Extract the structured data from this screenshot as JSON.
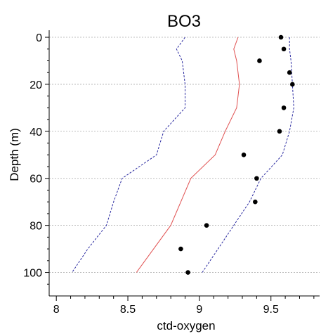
{
  "chart_data": {
    "type": "line",
    "title": "BO3",
    "xlabel": "ctd-oxygen",
    "ylabel": "Depth (m)",
    "xlim": [
      7.95,
      9.84
    ],
    "ylim": [
      110,
      -3
    ],
    "y_inverted": true,
    "x_ticks": [
      8,
      8.5,
      9,
      9.5
    ],
    "x_tick_labels": [
      "8",
      "8.5",
      "9",
      "9.5"
    ],
    "x_minor_step": 0.1,
    "y_ticks": [
      0,
      20,
      40,
      60,
      80,
      100
    ],
    "y_tick_labels": [
      "0",
      "20",
      "40",
      "60",
      "80",
      "100"
    ],
    "grid": "horizontal",
    "legend": "none",
    "colors": {
      "median_line": "#e05050",
      "bounds": "#2a2aa0",
      "points": "#000000",
      "grid": "#aaaaaa"
    },
    "series": [
      {
        "style": "dashed",
        "color": "#2a2aa0",
        "points": [
          [
            8.9,
            0
          ],
          [
            8.84,
            5
          ],
          [
            8.88,
            10
          ],
          [
            8.9,
            20
          ],
          [
            8.9,
            30
          ],
          [
            8.75,
            40
          ],
          [
            8.7,
            50
          ],
          [
            8.46,
            60
          ],
          [
            8.4,
            70
          ],
          [
            8.35,
            80
          ],
          [
            8.22,
            90
          ],
          [
            8.11,
            100
          ]
        ]
      },
      {
        "style": "solid",
        "color": "#e05050",
        "points": [
          [
            9.27,
            0
          ],
          [
            9.24,
            5
          ],
          [
            9.26,
            10
          ],
          [
            9.28,
            20
          ],
          [
            9.26,
            30
          ],
          [
            9.18,
            40
          ],
          [
            9.11,
            50
          ],
          [
            8.94,
            60
          ],
          [
            8.87,
            70
          ],
          [
            8.8,
            80
          ],
          [
            8.68,
            90
          ],
          [
            8.56,
            100
          ]
        ]
      },
      {
        "style": "dashed",
        "color": "#2a2aa0",
        "points": [
          [
            9.63,
            0
          ],
          [
            9.63,
            5
          ],
          [
            9.64,
            10
          ],
          [
            9.65,
            20
          ],
          [
            9.66,
            30
          ],
          [
            9.63,
            40
          ],
          [
            9.58,
            50
          ],
          [
            9.43,
            60
          ],
          [
            9.35,
            70
          ],
          [
            9.24,
            80
          ],
          [
            9.13,
            90
          ],
          [
            9.02,
            100
          ]
        ]
      },
      {
        "style": "points",
        "color": "#000000",
        "points": [
          [
            9.57,
            0
          ],
          [
            9.59,
            5
          ],
          [
            9.42,
            10
          ],
          [
            9.63,
            15
          ],
          [
            9.65,
            20
          ],
          [
            9.59,
            30
          ],
          [
            9.56,
            40
          ],
          [
            9.31,
            50
          ],
          [
            9.4,
            60
          ],
          [
            9.39,
            70
          ],
          [
            9.05,
            80
          ],
          [
            8.87,
            90
          ],
          [
            8.92,
            100
          ]
        ]
      }
    ]
  }
}
